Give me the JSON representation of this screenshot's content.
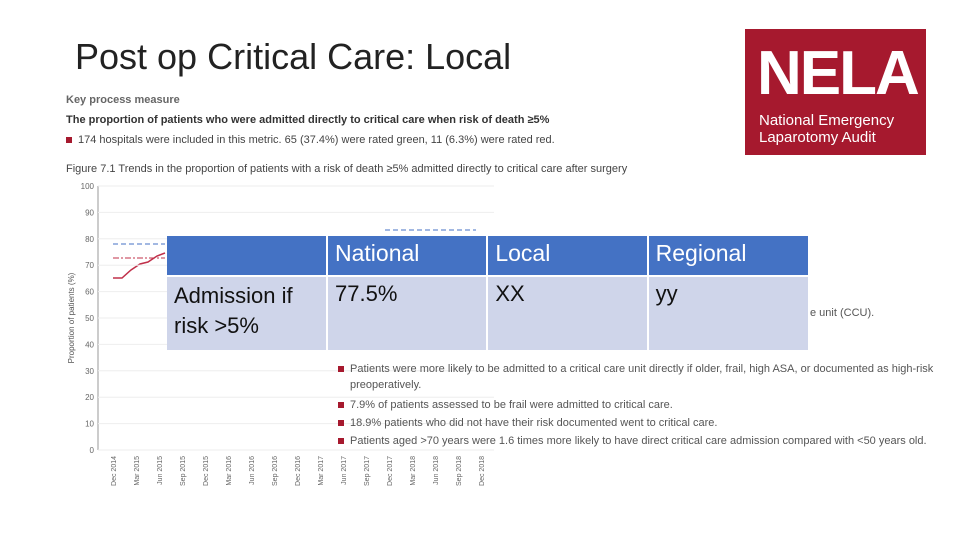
{
  "slide": {
    "title": "Post op Critical Care: Local",
    "logo": {
      "name": "NELA",
      "line1": "National Emergency",
      "line2": "Laparotomy Audit"
    }
  },
  "figure": {
    "heading": "Key process measure",
    "subheading": "The proportion of patients who were admitted directly to critical care when risk of death ≥5%",
    "note": "174 hospitals were included in this metric. 65 (37.4%) were rated green, 11 (6.3%) were rated red.",
    "caption": "Figure 7.1 Trends in the proportion of patients with a risk of death ≥5% admitted directly to critical care after surgery",
    "y_label": "Proportion of patients (%)",
    "yticks": [
      0,
      10,
      20,
      30,
      40,
      50,
      60,
      70,
      80,
      90,
      100
    ],
    "x_labels": [
      "Dec 2014",
      "Mar 2015",
      "Jun 2015",
      "Sep 2015",
      "Dec 2015",
      "Mar 2016",
      "Jun 2016",
      "Sep 2016",
      "Dec 2016",
      "Mar 2017",
      "Jun 2017",
      "Sep 2017",
      "Dec 2017",
      "Mar 2018",
      "Jun 2018",
      "Sep 2018",
      "Dec 2018"
    ],
    "fragment": "e unit (CCU).",
    "bullets": [
      "Patients were more likely to be admitted to a critical care unit directly if older, frail, high ASA, or documented as high-risk preoperatively.",
      "7.9% of patients assessed to be frail were admitted to critical care.",
      "18.9% patients who did not have their risk documented went to critical care.",
      "Patients aged >70 years were 1.6 times more likely to have direct critical care admission compared with <50 years old."
    ]
  },
  "table": {
    "headers": [
      "National",
      "Local",
      "Regional"
    ],
    "rows": [
      [
        "Admission if risk >5%",
        "77.5%",
        "XX",
        "yy"
      ]
    ]
  }
}
